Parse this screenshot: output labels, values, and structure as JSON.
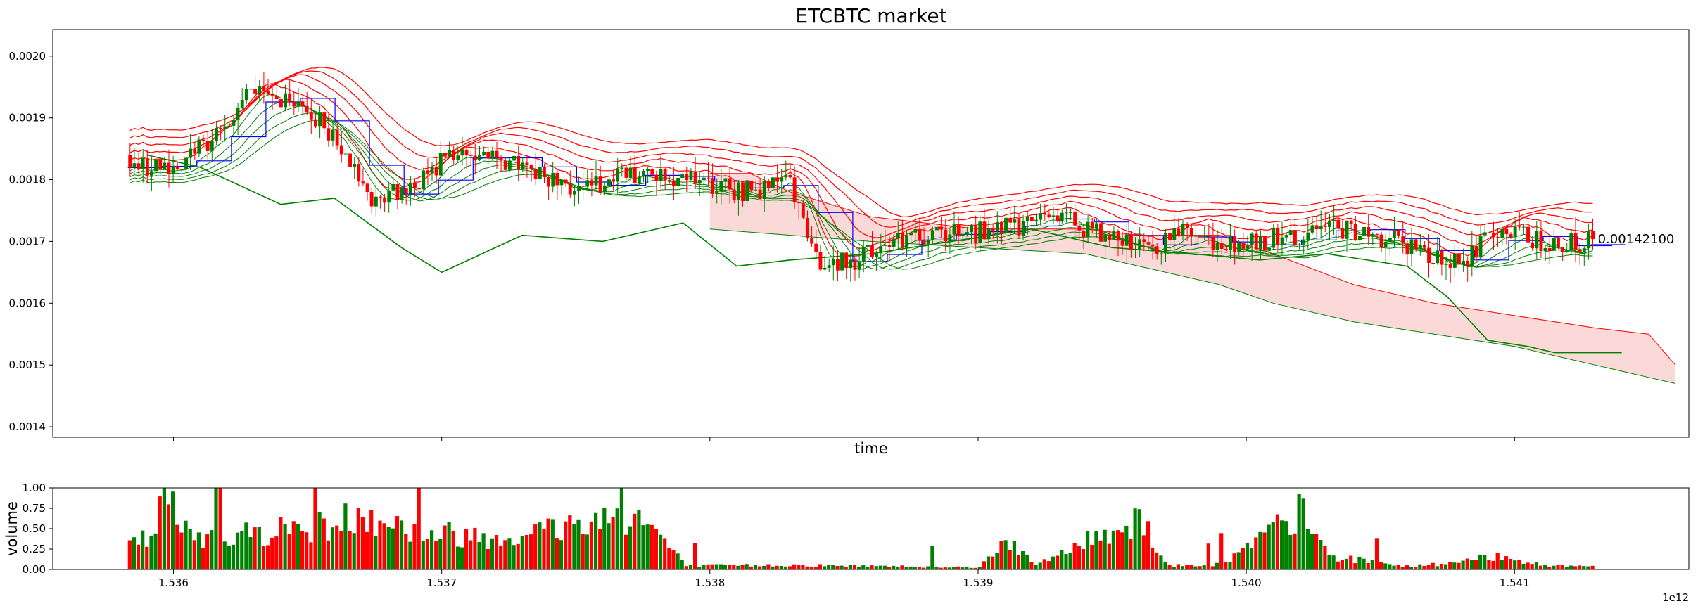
{
  "chart_data": [
    {
      "type": "candlestick",
      "title": "ETCBTC market",
      "xlabel": "time",
      "ylabel": "",
      "xlim": [
        1.53555,
        1.54165
      ],
      "ylim": [
        0.001383,
        0.002043
      ],
      "x_ticks": [
        1.536,
        1.537,
        1.538,
        1.539,
        1.54,
        1.541
      ],
      "y_ticks": [
        0.0014,
        0.0015,
        0.0016,
        0.0017,
        0.0018,
        0.0019,
        0.002
      ],
      "y_tick_labels": [
        "0.0014",
        "0.0015",
        "0.0016",
        "0.0017",
        "0.0018",
        "0.0019",
        "0.0020"
      ],
      "grid": false,
      "last_price_label": "0.00142100",
      "colors": {
        "up": "#008000",
        "down": "#ff0000",
        "blue_line": "#0000ff",
        "cloud_fill": "#fbd9d9"
      },
      "price_path": [
        [
          1.53583,
          0.00184
        ],
        [
          1.53592,
          0.00182
        ],
        [
          1.536,
          0.00181
        ],
        [
          1.5361,
          0.00185
        ],
        [
          1.5362,
          0.00188
        ],
        [
          1.53628,
          0.00195
        ],
        [
          1.53635,
          0.00195
        ],
        [
          1.53645,
          0.00192
        ],
        [
          1.53655,
          0.0019
        ],
        [
          1.53665,
          0.00183
        ],
        [
          1.53675,
          0.00177
        ],
        [
          1.5369,
          0.00178
        ],
        [
          1.53705,
          0.00185
        ],
        [
          1.5372,
          0.00183
        ],
        [
          1.53735,
          0.00182
        ],
        [
          1.5375,
          0.00178
        ],
        [
          1.53765,
          0.0018
        ],
        [
          1.5378,
          0.00181
        ],
        [
          1.538,
          0.00179
        ],
        [
          1.53815,
          0.00178
        ],
        [
          1.5383,
          0.0018
        ],
        [
          1.5384,
          0.00167
        ],
        [
          1.53855,
          0.00167
        ],
        [
          1.5387,
          0.0017
        ],
        [
          1.5389,
          0.00171
        ],
        [
          1.5391,
          0.00172
        ],
        [
          1.5393,
          0.00174
        ],
        [
          1.5395,
          0.00171
        ],
        [
          1.53965,
          0.00168
        ],
        [
          1.53975,
          0.00172
        ],
        [
          1.5399,
          0.0017
        ],
        [
          1.54005,
          0.0017
        ],
        [
          1.5402,
          0.00171
        ],
        [
          1.54035,
          0.00172
        ],
        [
          1.5405,
          0.00171
        ],
        [
          1.54065,
          0.00169
        ],
        [
          1.5408,
          0.00166
        ],
        [
          1.54095,
          0.00172
        ],
        [
          1.5411,
          0.0017
        ],
        [
          1.5413,
          0.0017
        ]
      ],
      "ma_offsets": [
        2e-05,
        4e-05,
        6e-05,
        8e-05,
        0.0001
      ],
      "lower_line": [
        [
          1.5359,
          0.00184
        ],
        [
          1.5361,
          0.00182
        ],
        [
          1.5364,
          0.00176
        ],
        [
          1.5366,
          0.00177
        ],
        [
          1.53685,
          0.00169
        ],
        [
          1.537,
          0.00165
        ],
        [
          1.5373,
          0.00171
        ],
        [
          1.5376,
          0.0017
        ],
        [
          1.5379,
          0.00173
        ],
        [
          1.5381,
          0.00166
        ],
        [
          1.5383,
          0.00167
        ],
        [
          1.5386,
          0.00168
        ],
        [
          1.5389,
          0.0017
        ],
        [
          1.5392,
          0.00172
        ],
        [
          1.5395,
          0.00169
        ],
        [
          1.5398,
          0.00168
        ],
        [
          1.54005,
          0.00167
        ],
        [
          1.5403,
          0.00168
        ],
        [
          1.5406,
          0.00166
        ],
        [
          1.54075,
          0.00161
        ],
        [
          1.5409,
          0.00154
        ],
        [
          1.54105,
          0.00153
        ],
        [
          1.54115,
          0.00152
        ],
        [
          1.5414,
          0.00152
        ]
      ],
      "cloud_upper": [
        [
          1.538,
          0.00181
        ],
        [
          1.53815,
          0.00181
        ],
        [
          1.5383,
          0.00178
        ],
        [
          1.5386,
          0.00174
        ],
        [
          1.539,
          0.00172
        ],
        [
          1.5394,
          0.00172
        ],
        [
          1.5396,
          0.00171
        ],
        [
          1.5399,
          0.00171
        ],
        [
          1.5401,
          0.00168
        ],
        [
          1.5404,
          0.00163
        ],
        [
          1.5407,
          0.0016
        ],
        [
          1.541,
          0.00158
        ],
        [
          1.5413,
          0.00156
        ],
        [
          1.5415,
          0.00155
        ],
        [
          1.5416,
          0.0015
        ]
      ],
      "cloud_lower": [
        [
          1.538,
          0.00172
        ],
        [
          1.5383,
          0.00171
        ],
        [
          1.5386,
          0.0017
        ],
        [
          1.539,
          0.00169
        ],
        [
          1.5394,
          0.00168
        ],
        [
          1.5396,
          0.00166
        ],
        [
          1.5399,
          0.00163
        ],
        [
          1.5401,
          0.0016
        ],
        [
          1.5404,
          0.00157
        ],
        [
          1.5407,
          0.00155
        ],
        [
          1.541,
          0.00153
        ],
        [
          1.5413,
          0.0015
        ],
        [
          1.5415,
          0.00148
        ],
        [
          1.5416,
          0.00147
        ]
      ]
    },
    {
      "type": "bar",
      "xlabel": "",
      "ylabel": "volume",
      "xlim": [
        1.53555,
        1.54165
      ],
      "ylim": [
        0,
        1.0
      ],
      "y_ticks": [
        0.0,
        0.25,
        0.5,
        0.75,
        1.0
      ],
      "y_tick_labels": [
        "0.00",
        "0.25",
        "0.50",
        "0.75",
        "1.00"
      ],
      "x_ticks": [
        1.536,
        1.537,
        1.538,
        1.539,
        1.54,
        1.541
      ],
      "x_tick_labels": [
        "1.536",
        "1.537",
        "1.538",
        "1.539",
        "1.540",
        "1.541"
      ],
      "x_offset_label": "1e12",
      "volume_profile": [
        [
          1.53584,
          0.35
        ],
        [
          1.53592,
          0.45
        ],
        [
          1.53596,
          1.0
        ],
        [
          1.53604,
          0.5
        ],
        [
          1.5362,
          0.45
        ],
        [
          1.5364,
          0.55
        ],
        [
          1.5366,
          0.6
        ],
        [
          1.5367,
          0.82
        ],
        [
          1.5369,
          0.5
        ],
        [
          1.5372,
          0.45
        ],
        [
          1.5374,
          0.55
        ],
        [
          1.5376,
          0.7
        ],
        [
          1.5377,
          0.78
        ],
        [
          1.5378,
          0.5
        ],
        [
          1.5379,
          0.05
        ],
        [
          1.5383,
          0.06
        ],
        [
          1.5385,
          0.05
        ],
        [
          1.539,
          0.03
        ],
        [
          1.5391,
          0.45
        ],
        [
          1.5392,
          0.05
        ],
        [
          1.5396,
          0.72
        ],
        [
          1.5397,
          0.05
        ],
        [
          1.5399,
          0.07
        ],
        [
          1.5402,
          0.78
        ],
        [
          1.5403,
          0.18
        ],
        [
          1.5406,
          0.04
        ],
        [
          1.5408,
          0.1
        ],
        [
          1.54095,
          0.2
        ],
        [
          1.5411,
          0.05
        ]
      ]
    }
  ]
}
